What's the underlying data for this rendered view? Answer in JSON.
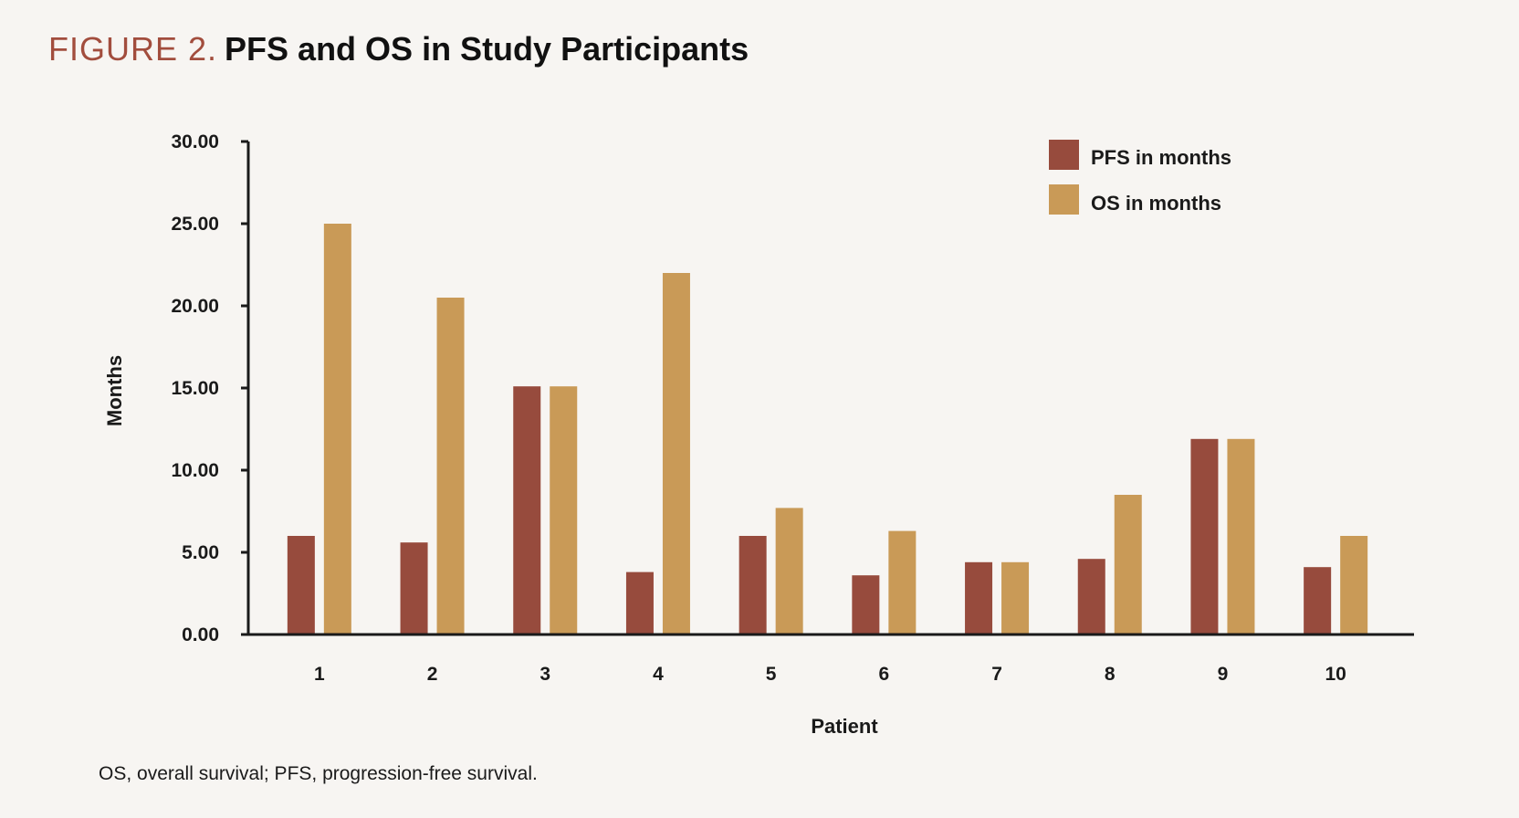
{
  "heading": {
    "label": "FIGURE 2.",
    "title": "PFS and OS in Study Participants"
  },
  "footnote": "OS, overall survival; PFS, progression-free survival.",
  "colors": {
    "pfs": "#974b3d",
    "os": "#c99a57",
    "axis": "#1a1a1a"
  },
  "chart_data": {
    "type": "bar",
    "title": "PFS and OS in Study Participants",
    "xlabel": "Patient",
    "ylabel": "Months",
    "ylim": [
      0,
      30
    ],
    "yticks": [
      "0.00",
      "5.00",
      "10.00",
      "15.00",
      "20.00",
      "25.00",
      "30.00"
    ],
    "categories": [
      "1",
      "2",
      "3",
      "4",
      "5",
      "6",
      "7",
      "8",
      "9",
      "10"
    ],
    "series": [
      {
        "name": "PFS in months",
        "values": [
          6.0,
          5.6,
          15.1,
          3.8,
          6.0,
          3.6,
          4.4,
          4.6,
          11.9,
          4.1
        ]
      },
      {
        "name": "OS in months",
        "values": [
          25.0,
          20.5,
          15.1,
          22.0,
          7.7,
          6.3,
          4.4,
          8.5,
          11.9,
          6.0
        ]
      }
    ],
    "legend_position": "top-right",
    "grid": false
  }
}
